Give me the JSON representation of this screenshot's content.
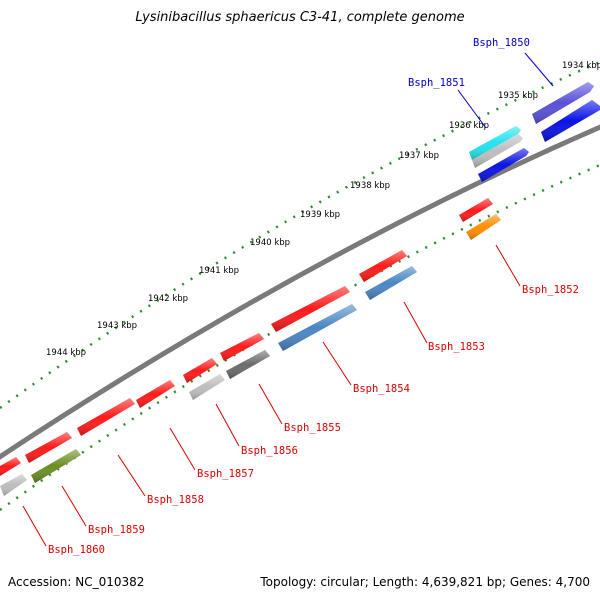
{
  "title": "Lysinibacillus sphaericus C3-41, complete genome",
  "accession_label": "Accession: NC_010382",
  "summary_label": "Topology: circular; Length: 4,639,821 bp; Genes: 4,700",
  "colors": {
    "backbone": "#7a7a7a",
    "tick_track": "#2e8b2e",
    "forward_label": "#0000cc",
    "reverse_label": "#dd0000",
    "red": "#ff1a1a",
    "gray": "#bdbdbd",
    "darkgray": "#6b6b6b",
    "steelblue": "#4a86c4",
    "olive": "#6b8e23",
    "orange": "#ff8c00",
    "blue": "#0a12e6",
    "purple": "#5a50d8",
    "cyan": "#22e3ee"
  },
  "kbp_labels": [
    "1934 kbp",
    "1935 kbp",
    "1936 kbp",
    "1937 kbp",
    "1938 kbp",
    "1939 kbp",
    "1940 kbp",
    "1941 kbp",
    "1942 kbp",
    "1943 kbp",
    "1944 kbp"
  ],
  "forward_genes": [
    {
      "label": "Bsph_1850",
      "color": "purple"
    },
    {
      "label": "Bsph_1851",
      "color": "cyan"
    }
  ],
  "forward_unlabeled_genes": [
    {
      "color": "blue"
    },
    {
      "color": "gray"
    },
    {
      "color": "blue"
    }
  ],
  "reverse_genes": [
    {
      "label": "Bsph_1852",
      "color": "orange"
    },
    {
      "label": "Bsph_1853",
      "color": "steelblue"
    },
    {
      "label": "Bsph_1854",
      "color": "steelblue"
    },
    {
      "label": "Bsph_1855",
      "color": "darkgray"
    },
    {
      "label": "Bsph_1856",
      "color": "gray"
    },
    {
      "label": "Bsph_1857",
      "color": "red"
    },
    {
      "label": "Bsph_1858",
      "color": "red"
    },
    {
      "label": "Bsph_1859",
      "color": "olive"
    },
    {
      "label": "Bsph_1860",
      "color": "gray"
    }
  ],
  "reverse_unlabeled_genes": [
    {
      "color": "red"
    },
    {
      "color": "red"
    },
    {
      "color": "red"
    },
    {
      "color": "red"
    },
    {
      "color": "red"
    },
    {
      "color": "red"
    },
    {
      "color": "red"
    }
  ]
}
